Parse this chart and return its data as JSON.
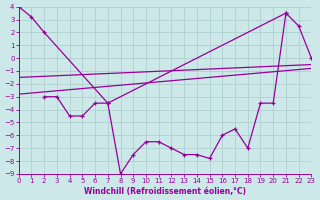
{
  "bg_color": "#cce8e8",
  "line_color": "#990099",
  "grid_color": "#aacccc",
  "xlabel": "Windchill (Refroidissement éolien,°C)",
  "xlim": [
    0,
    23
  ],
  "ylim": [
    -9,
    4
  ],
  "xticks": [
    0,
    1,
    2,
    3,
    4,
    5,
    6,
    7,
    8,
    9,
    10,
    11,
    12,
    13,
    14,
    15,
    16,
    17,
    18,
    19,
    20,
    21,
    22,
    23
  ],
  "yticks": [
    4,
    3,
    2,
    1,
    0,
    -1,
    -2,
    -3,
    -4,
    -5,
    -6,
    -7,
    -8,
    -9
  ],
  "line1_x": [
    0,
    1,
    2,
    7,
    21,
    22,
    23
  ],
  "line1_y": [
    4,
    3.2,
    2.0,
    -3.5,
    3.5,
    2.5,
    0.0
  ],
  "line2_x": [
    0,
    23
  ],
  "line2_y": [
    -1.5,
    -0.5
  ],
  "line3_x": [
    0,
    23
  ],
  "line3_y": [
    -2.8,
    -0.8
  ],
  "line4_x": [
    2,
    3,
    4,
    5,
    6,
    7,
    8,
    9,
    10,
    11,
    12,
    13,
    14,
    15,
    16,
    17,
    18,
    19,
    20,
    21
  ],
  "line4_y": [
    -3.0,
    -3.0,
    -4.5,
    -4.5,
    -3.5,
    -3.5,
    -9.0,
    -7.5,
    -6.5,
    -6.5,
    -7.0,
    -7.5,
    -7.5,
    -7.8,
    -6.0,
    -5.5,
    -7.0,
    -3.5,
    -3.5,
    3.5
  ]
}
